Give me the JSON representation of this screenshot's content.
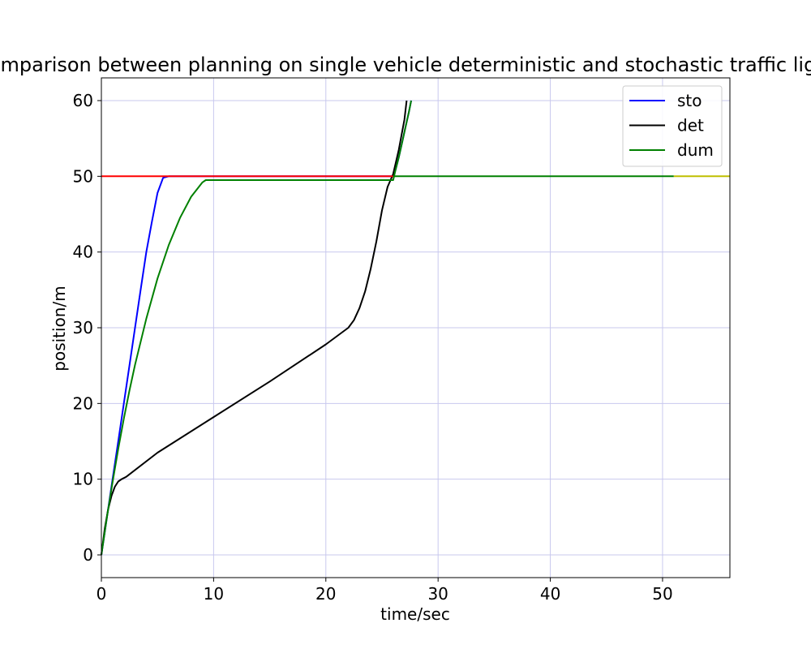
{
  "chart_data": {
    "type": "line",
    "title": "Comparison between planning on single vehicle deterministic and stochastic traffic light",
    "xlabel": "time/sec",
    "ylabel": "position/m",
    "xlim": [
      0,
      56
    ],
    "ylim": [
      -3,
      63
    ],
    "xticks": [
      0,
      10,
      20,
      30,
      40,
      50
    ],
    "yticks": [
      0,
      10,
      20,
      30,
      40,
      50,
      60
    ],
    "grid": true,
    "grid_color": "#c8c8ee",
    "legend_position": "upper right",
    "series": [
      {
        "name": "sto",
        "color": "#0000ff",
        "x": [
          0,
          0.5,
          1,
          1.5,
          2,
          2.5,
          3,
          3.5,
          4,
          4.5,
          5,
          5.5,
          6,
          26,
          26.2,
          26.5,
          26.8,
          27.1,
          27.4,
          27.6
        ],
        "y": [
          0,
          5,
          10,
          15,
          20,
          25,
          30,
          35,
          40,
          44,
          47.8,
          49.8,
          50,
          50,
          50.8,
          52.5,
          54.5,
          56.5,
          58.5,
          60
        ]
      },
      {
        "name": "det",
        "color": "#000000",
        "x": [
          0,
          0.3,
          0.6,
          0.9,
          1.2,
          1.5,
          1.8,
          2.2,
          5,
          10,
          15,
          20,
          22,
          22.5,
          23,
          23.5,
          24,
          24.5,
          25,
          25.5,
          26,
          26.5,
          27,
          27.2
        ],
        "y": [
          0,
          3.5,
          6,
          7.8,
          9,
          9.7,
          10,
          10.3,
          13.5,
          18.2,
          22.9,
          27.8,
          30,
          31,
          32.6,
          34.8,
          37.8,
          41.4,
          45.5,
          48.6,
          50.3,
          53.5,
          57.5,
          60
        ]
      },
      {
        "name": "dum",
        "color": "#008000",
        "x": [
          0,
          0.5,
          1,
          1.5,
          2,
          2.5,
          3,
          4,
          5,
          6,
          7,
          8,
          9,
          9.3,
          26,
          26.2,
          26.5,
          26.8,
          27.1,
          27.4,
          27.6
        ],
        "y": [
          0,
          5,
          9.6,
          14,
          18,
          21.7,
          25.1,
          31.2,
          36.5,
          40.9,
          44.5,
          47.3,
          49.2,
          49.5,
          49.5,
          50.8,
          52.5,
          54.5,
          56.5,
          58.5,
          60
        ]
      },
      {
        "color": "#ff0000",
        "x": [
          0,
          26
        ],
        "y": [
          50,
          50
        ]
      },
      {
        "color": "#008000",
        "x": [
          26,
          51
        ],
        "y": [
          50,
          50
        ]
      },
      {
        "color": "#bfbf00",
        "x": [
          51,
          56
        ],
        "y": [
          50,
          50
        ]
      }
    ]
  }
}
